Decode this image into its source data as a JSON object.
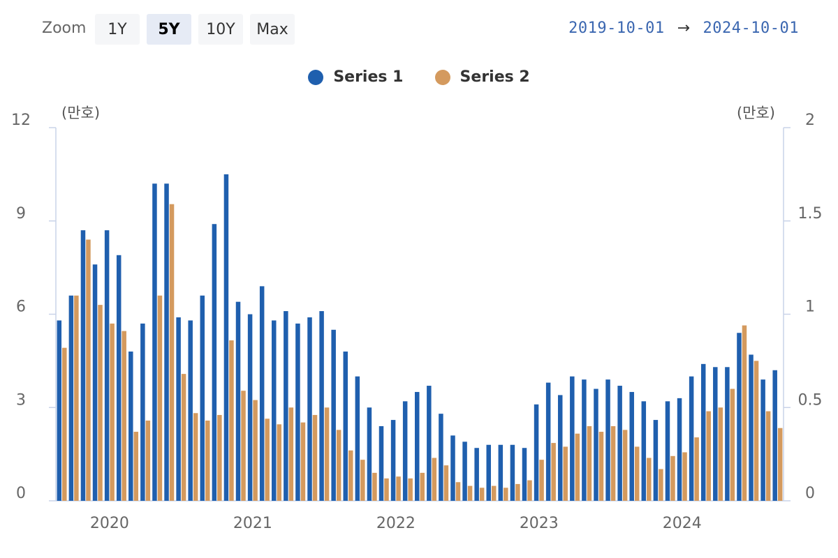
{
  "toolbar": {
    "zoom_label": "Zoom",
    "buttons": [
      {
        "label": "1Y",
        "active": false
      },
      {
        "label": "5Y",
        "active": true
      },
      {
        "label": "10Y",
        "active": false
      },
      {
        "label": "Max",
        "active": false
      }
    ],
    "range_start": "2019-10-01",
    "range_arrow": "→",
    "range_end": "2024-10-01"
  },
  "colors": {
    "series1": "#1f5fae",
    "series2": "#d49a5e",
    "axis": "#c9d3e8"
  },
  "chart_data": {
    "type": "bar",
    "legend_position": "top-center",
    "grid": false,
    "y_left": {
      "unit_label": "(만호)",
      "range": [
        0,
        12
      ],
      "ticks": [
        "0",
        "3",
        "6",
        "9",
        "12"
      ]
    },
    "y_right": {
      "unit_label": "(만호)",
      "range": [
        0,
        2
      ],
      "ticks": [
        "0",
        "0.5",
        "1",
        "1.5",
        "2"
      ]
    },
    "x": {
      "start": "2019-10",
      "end": "2024-10",
      "tick_labels": [
        "2020",
        "2021",
        "2022",
        "2023",
        "2024"
      ]
    },
    "categories": [
      "2019-10",
      "2019-11",
      "2019-12",
      "2020-01",
      "2020-02",
      "2020-03",
      "2020-04",
      "2020-05",
      "2020-06",
      "2020-07",
      "2020-08",
      "2020-09",
      "2020-10",
      "2020-11",
      "2020-12",
      "2021-01",
      "2021-02",
      "2021-03",
      "2021-04",
      "2021-05",
      "2021-06",
      "2021-07",
      "2021-08",
      "2021-09",
      "2021-10",
      "2021-11",
      "2021-12",
      "2022-01",
      "2022-02",
      "2022-03",
      "2022-04",
      "2022-05",
      "2022-06",
      "2022-07",
      "2022-08",
      "2022-09",
      "2022-10",
      "2022-11",
      "2022-12",
      "2023-01",
      "2023-02",
      "2023-03",
      "2023-04",
      "2023-05",
      "2023-06",
      "2023-07",
      "2023-08",
      "2023-09",
      "2023-10",
      "2023-11",
      "2023-12",
      "2024-01",
      "2024-02",
      "2024-03",
      "2024-04",
      "2024-05",
      "2024-06",
      "2024-07",
      "2024-08",
      "2024-09",
      "2024-10"
    ],
    "series": [
      {
        "name": "Series 1",
        "axis": "left",
        "values": [
          5.8,
          6.6,
          8.7,
          7.6,
          8.7,
          7.9,
          4.8,
          5.7,
          10.2,
          10.2,
          5.9,
          5.8,
          6.6,
          8.9,
          10.5,
          6.4,
          6.0,
          6.9,
          5.8,
          6.1,
          5.7,
          5.9,
          6.1,
          5.5,
          4.8,
          4.0,
          3.0,
          2.4,
          2.6,
          3.2,
          3.5,
          3.7,
          2.8,
          2.1,
          1.9,
          1.7,
          1.8,
          1.8,
          1.8,
          1.7,
          3.1,
          3.8,
          3.4,
          4.0,
          3.9,
          3.6,
          3.9,
          3.7,
          3.5,
          3.2,
          2.6,
          3.2,
          3.3,
          4.0,
          4.4,
          4.3,
          4.3,
          5.4,
          4.7,
          3.9,
          4.2
        ]
      },
      {
        "name": "Series 2",
        "axis": "right",
        "values": [
          0.82,
          1.1,
          1.4,
          1.05,
          0.95,
          0.91,
          0.37,
          0.43,
          1.1,
          1.59,
          0.68,
          0.47,
          0.43,
          0.46,
          0.86,
          0.59,
          0.54,
          0.44,
          0.41,
          0.5,
          0.42,
          0.46,
          0.5,
          0.38,
          0.27,
          0.22,
          0.15,
          0.12,
          0.13,
          0.12,
          0.15,
          0.23,
          0.19,
          0.1,
          0.08,
          0.07,
          0.08,
          0.07,
          0.09,
          0.11,
          0.22,
          0.31,
          0.29,
          0.36,
          0.4,
          0.37,
          0.4,
          0.38,
          0.29,
          0.23,
          0.17,
          0.24,
          0.26,
          0.34,
          0.48,
          0.5,
          0.6,
          0.94,
          0.75,
          0.48,
          0.39
        ]
      }
    ]
  }
}
